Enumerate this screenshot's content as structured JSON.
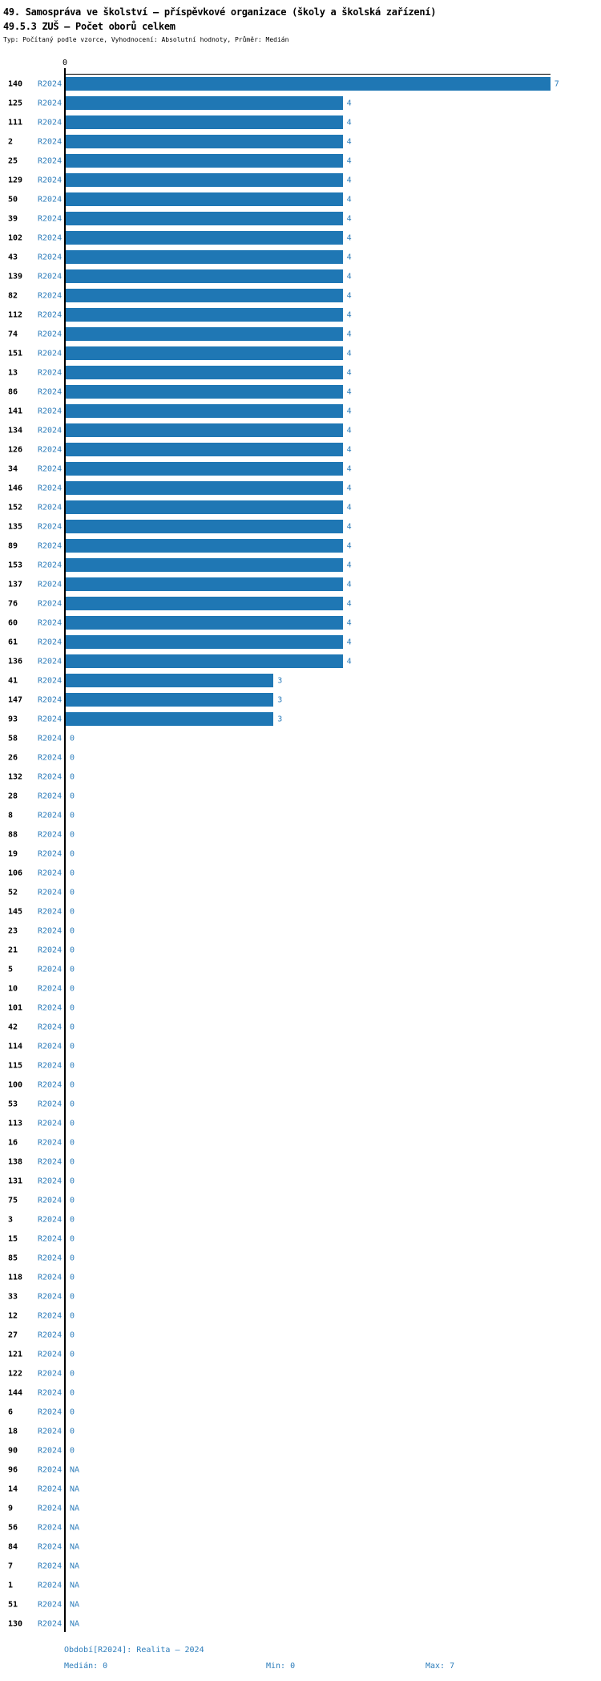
{
  "header": {
    "title_line1": "49. Samospráva ve školství – příspěvkové organizace (školy a školská zařízení)",
    "title_line2": "49.5.3 ZUŠ – Počet oborů celkem",
    "subtitle": "Typ: Počítaný podle vzorce, Vyhodnocení: Absolutní hodnoty, Průměr: Medián"
  },
  "chart_data": {
    "type": "bar",
    "orientation": "horizontal",
    "title": "49.5.3 ZUŠ – Počet oborů celkem",
    "period_label": "R2024",
    "xlim": [
      0,
      7
    ],
    "x_tick_labels": [
      "0"
    ],
    "zero_tick_label": "0",
    "na_label": "NA",
    "bar_color": "#1f77b4",
    "label_color": "#2d7dbb",
    "stats": {
      "median": 0,
      "min": 0,
      "max": 7
    },
    "rows": [
      {
        "id": "140",
        "value": 7
      },
      {
        "id": "125",
        "value": 4
      },
      {
        "id": "111",
        "value": 4
      },
      {
        "id": "2",
        "value": 4
      },
      {
        "id": "25",
        "value": 4
      },
      {
        "id": "129",
        "value": 4
      },
      {
        "id": "50",
        "value": 4
      },
      {
        "id": "39",
        "value": 4
      },
      {
        "id": "102",
        "value": 4
      },
      {
        "id": "43",
        "value": 4
      },
      {
        "id": "139",
        "value": 4
      },
      {
        "id": "82",
        "value": 4
      },
      {
        "id": "112",
        "value": 4
      },
      {
        "id": "74",
        "value": 4
      },
      {
        "id": "151",
        "value": 4
      },
      {
        "id": "13",
        "value": 4
      },
      {
        "id": "86",
        "value": 4
      },
      {
        "id": "141",
        "value": 4
      },
      {
        "id": "134",
        "value": 4
      },
      {
        "id": "126",
        "value": 4
      },
      {
        "id": "34",
        "value": 4
      },
      {
        "id": "146",
        "value": 4
      },
      {
        "id": "152",
        "value": 4
      },
      {
        "id": "135",
        "value": 4
      },
      {
        "id": "89",
        "value": 4
      },
      {
        "id": "153",
        "value": 4
      },
      {
        "id": "137",
        "value": 4
      },
      {
        "id": "76",
        "value": 4
      },
      {
        "id": "60",
        "value": 4
      },
      {
        "id": "61",
        "value": 4
      },
      {
        "id": "136",
        "value": 4
      },
      {
        "id": "41",
        "value": 3
      },
      {
        "id": "147",
        "value": 3
      },
      {
        "id": "93",
        "value": 3
      },
      {
        "id": "58",
        "value": 0
      },
      {
        "id": "26",
        "value": 0
      },
      {
        "id": "132",
        "value": 0
      },
      {
        "id": "28",
        "value": 0
      },
      {
        "id": "8",
        "value": 0
      },
      {
        "id": "88",
        "value": 0
      },
      {
        "id": "19",
        "value": 0
      },
      {
        "id": "106",
        "value": 0
      },
      {
        "id": "52",
        "value": 0
      },
      {
        "id": "145",
        "value": 0
      },
      {
        "id": "23",
        "value": 0
      },
      {
        "id": "21",
        "value": 0
      },
      {
        "id": "5",
        "value": 0
      },
      {
        "id": "10",
        "value": 0
      },
      {
        "id": "101",
        "value": 0
      },
      {
        "id": "42",
        "value": 0
      },
      {
        "id": "114",
        "value": 0
      },
      {
        "id": "115",
        "value": 0
      },
      {
        "id": "100",
        "value": 0
      },
      {
        "id": "53",
        "value": 0
      },
      {
        "id": "113",
        "value": 0
      },
      {
        "id": "16",
        "value": 0
      },
      {
        "id": "138",
        "value": 0
      },
      {
        "id": "131",
        "value": 0
      },
      {
        "id": "75",
        "value": 0
      },
      {
        "id": "3",
        "value": 0
      },
      {
        "id": "15",
        "value": 0
      },
      {
        "id": "85",
        "value": 0
      },
      {
        "id": "118",
        "value": 0
      },
      {
        "id": "33",
        "value": 0
      },
      {
        "id": "12",
        "value": 0
      },
      {
        "id": "27",
        "value": 0
      },
      {
        "id": "121",
        "value": 0
      },
      {
        "id": "122",
        "value": 0
      },
      {
        "id": "144",
        "value": 0
      },
      {
        "id": "6",
        "value": 0
      },
      {
        "id": "18",
        "value": 0
      },
      {
        "id": "90",
        "value": 0
      },
      {
        "id": "96",
        "value": "NA"
      },
      {
        "id": "14",
        "value": "NA"
      },
      {
        "id": "9",
        "value": "NA"
      },
      {
        "id": "56",
        "value": "NA"
      },
      {
        "id": "84",
        "value": "NA"
      },
      {
        "id": "7",
        "value": "NA"
      },
      {
        "id": "1",
        "value": "NA"
      },
      {
        "id": "51",
        "value": "NA"
      },
      {
        "id": "130",
        "value": "NA"
      }
    ]
  },
  "footer": {
    "period_info": "Období[R2024]: Realita – 2024",
    "median_label": "Medián: 0",
    "min_label": "Min: 0",
    "max_label": "Max: 7"
  }
}
